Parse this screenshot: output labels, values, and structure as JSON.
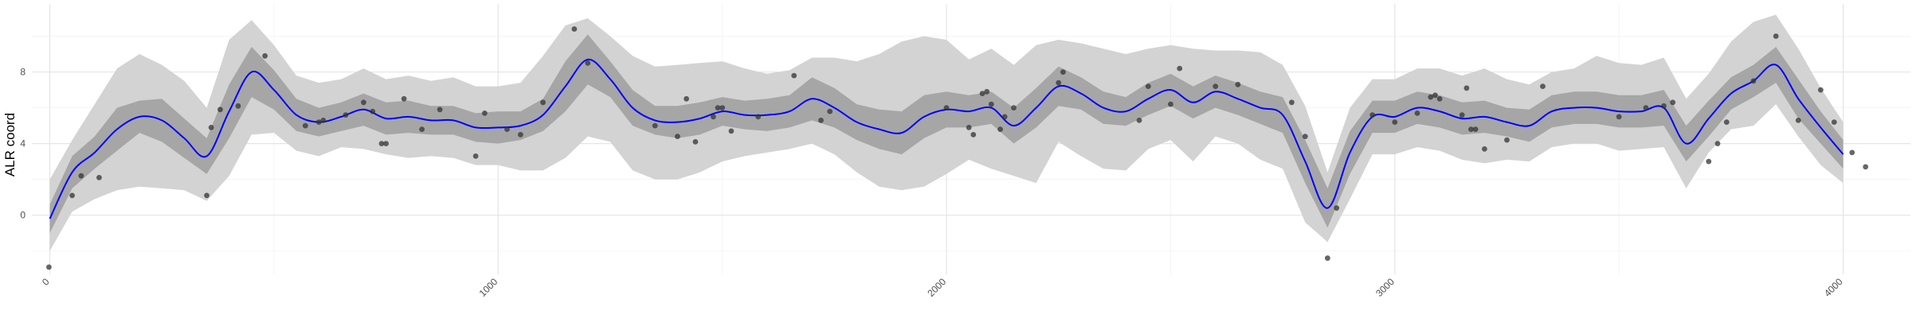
{
  "chart_data": {
    "type": "line",
    "title": "",
    "xlabel": "",
    "ylabel": "ALR coord",
    "xlim": [
      -40,
      4150
    ],
    "ylim": [
      -3.3,
      11.8
    ],
    "x_ticks": [
      0,
      1000,
      2000,
      3000,
      4000
    ],
    "x_tick_labels": [
      "0",
      "1000",
      "2000",
      "3000",
      "4000"
    ],
    "y_ticks": [
      0,
      4,
      8
    ],
    "y_tick_labels": [
      "0",
      "4",
      "8"
    ],
    "grid": true,
    "legend": "none",
    "colors": {
      "line": "#0000ff",
      "inner_band": "#a6a6a6",
      "outer_band": "#d3d3d3",
      "points": "#333333",
      "grid_major": "#e5e5e5",
      "grid_minor": "#f2f2f2"
    },
    "series": [
      {
        "kind": "fit",
        "x": [
          0,
          50,
          100,
          150,
          200,
          250,
          300,
          350,
          400,
          450,
          500,
          550,
          600,
          650,
          700,
          750,
          800,
          850,
          900,
          950,
          1000,
          1050,
          1100,
          1150,
          1200,
          1250,
          1300,
          1350,
          1400,
          1450,
          1500,
          1550,
          1600,
          1650,
          1700,
          1750,
          1800,
          1850,
          1900,
          1950,
          2000,
          2050,
          2100,
          2150,
          2200,
          2250,
          2300,
          2350,
          2400,
          2450,
          2500,
          2550,
          2600,
          2650,
          2700,
          2750,
          2800,
          2850,
          2900,
          2950,
          3000,
          3050,
          3100,
          3150,
          3200,
          3250,
          3300,
          3350,
          3400,
          3450,
          3500,
          3550,
          3600,
          3650,
          3700,
          3750,
          3800,
          3850,
          3900,
          3950,
          4000
        ],
        "y": [
          -0.2,
          2.4,
          3.5,
          4.8,
          5.5,
          5.3,
          4.3,
          3.3,
          5.8,
          8.0,
          7.0,
          5.6,
          5.2,
          5.5,
          5.9,
          5.4,
          5.5,
          5.3,
          5.3,
          4.9,
          4.9,
          5.0,
          5.6,
          7.2,
          8.7,
          7.6,
          6.0,
          5.3,
          5.2,
          5.4,
          5.8,
          5.6,
          5.6,
          5.8,
          6.5,
          6.0,
          5.2,
          4.8,
          4.6,
          5.5,
          5.9,
          5.8,
          6.0,
          5.0,
          6.0,
          7.2,
          6.8,
          6.0,
          5.8,
          6.5,
          7.0,
          6.3,
          6.9,
          6.5,
          6.0,
          5.6,
          3.0,
          0.4,
          3.5,
          5.5,
          5.5,
          6.0,
          5.8,
          5.4,
          5.5,
          5.2,
          5.0,
          5.8,
          6.0,
          6.0,
          5.8,
          5.8,
          6.0,
          4.0,
          5.4,
          6.8,
          7.5,
          8.4,
          6.5,
          4.9,
          3.4
        ],
        "inner_lower": [
          -1.0,
          1.5,
          2.6,
          3.6,
          4.6,
          4.1,
          3.2,
          2.3,
          4.3,
          6.6,
          5.9,
          4.7,
          4.4,
          4.7,
          5.0,
          4.5,
          4.6,
          4.5,
          4.5,
          4.1,
          4.0,
          4.2,
          4.7,
          5.8,
          7.3,
          6.6,
          5.0,
          4.5,
          4.3,
          4.5,
          5.0,
          4.8,
          4.7,
          4.9,
          5.3,
          4.9,
          4.2,
          3.7,
          3.4,
          4.3,
          4.9,
          4.9,
          5.1,
          4.0,
          4.9,
          6.1,
          5.9,
          5.1,
          5.0,
          5.6,
          6.1,
          5.4,
          6.0,
          5.6,
          5.1,
          4.6,
          1.8,
          -0.7,
          2.3,
          4.6,
          4.6,
          5.1,
          4.9,
          4.5,
          4.6,
          4.4,
          4.1,
          4.9,
          5.1,
          5.1,
          4.9,
          4.9,
          5.0,
          3.0,
          4.4,
          5.9,
          6.6,
          7.4,
          5.4,
          4.0,
          2.6
        ],
        "inner_upper": [
          0.6,
          3.3,
          4.4,
          6.0,
          6.4,
          6.5,
          5.4,
          4.3,
          7.3,
          9.4,
          8.1,
          6.5,
          6.0,
          6.3,
          6.8,
          6.3,
          6.4,
          6.1,
          6.1,
          5.7,
          5.8,
          5.8,
          6.5,
          8.6,
          10.1,
          8.6,
          7.0,
          6.1,
          6.1,
          6.3,
          6.6,
          6.4,
          6.5,
          6.7,
          7.7,
          7.1,
          6.2,
          5.9,
          5.8,
          6.7,
          6.9,
          6.7,
          6.9,
          6.0,
          7.1,
          8.3,
          7.7,
          6.9,
          6.6,
          7.4,
          7.9,
          7.2,
          7.8,
          7.4,
          6.9,
          6.6,
          4.2,
          1.5,
          4.7,
          6.4,
          6.4,
          6.9,
          6.7,
          6.3,
          6.4,
          6.0,
          5.9,
          6.7,
          6.9,
          6.9,
          6.7,
          6.7,
          7.0,
          5.0,
          6.4,
          7.7,
          8.4,
          9.4,
          7.6,
          5.8,
          4.2
        ],
        "outer_lower": [
          -2.0,
          0.2,
          0.9,
          1.4,
          1.6,
          1.5,
          1.4,
          0.8,
          2.2,
          4.5,
          4.6,
          3.6,
          3.3,
          3.8,
          3.7,
          3.4,
          3.2,
          3.3,
          3.2,
          2.8,
          2.8,
          2.5,
          2.5,
          3.2,
          4.4,
          4.1,
          2.5,
          2.0,
          2.0,
          2.4,
          3.0,
          3.3,
          3.5,
          3.7,
          4.0,
          3.4,
          2.4,
          1.6,
          1.4,
          1.6,
          2.3,
          3.1,
          2.6,
          2.2,
          1.8,
          4.1,
          3.3,
          2.6,
          2.5,
          3.7,
          4.2,
          3.0,
          4.4,
          4.0,
          3.1,
          2.6,
          -0.4,
          -1.5,
          0.9,
          3.4,
          3.4,
          3.8,
          3.6,
          3.1,
          2.9,
          3.1,
          3.0,
          3.8,
          4.0,
          4.0,
          3.6,
          3.7,
          3.8,
          1.5,
          3.5,
          4.8,
          5.0,
          6.2,
          4.4,
          2.8,
          1.8
        ],
        "outer_upper": [
          2.0,
          4.2,
          6.2,
          8.2,
          9.0,
          8.4,
          7.5,
          6.0,
          9.8,
          10.9,
          9.5,
          7.8,
          7.4,
          7.6,
          8.2,
          7.6,
          7.8,
          7.5,
          7.7,
          7.2,
          7.2,
          7.4,
          8.9,
          10.6,
          11.0,
          10.0,
          8.9,
          8.3,
          8.4,
          8.5,
          8.6,
          8.2,
          7.9,
          8.1,
          8.8,
          8.8,
          8.6,
          9.0,
          9.7,
          10.0,
          9.8,
          8.7,
          9.3,
          8.4,
          9.5,
          9.8,
          9.6,
          9.3,
          9.0,
          9.3,
          9.5,
          9.3,
          9.2,
          9.2,
          9.1,
          8.4,
          6.1,
          2.4,
          6.0,
          7.6,
          7.6,
          8.2,
          8.2,
          7.8,
          8.2,
          7.6,
          7.3,
          8.0,
          8.2,
          8.9,
          8.5,
          8.4,
          8.8,
          6.5,
          7.9,
          9.7,
          10.8,
          11.2,
          9.3,
          7.1,
          5.2
        ]
      },
      {
        "kind": "points",
        "x": [
          -2,
          50,
          70,
          110,
          350,
          360,
          380,
          420,
          480,
          570,
          600,
          610,
          660,
          700,
          720,
          740,
          750,
          790,
          830,
          870,
          950,
          970,
          1020,
          1050,
          1100,
          1170,
          1200,
          1350,
          1400,
          1420,
          1440,
          1480,
          1490,
          1500,
          1520,
          1580,
          1660,
          1720,
          1740,
          2000,
          2050,
          2060,
          2080,
          2090,
          2100,
          2120,
          2130,
          2150,
          2250,
          2260,
          2430,
          2450,
          2500,
          2520,
          2600,
          2650,
          2770,
          2800,
          2850,
          2870,
          2950,
          3000,
          3050,
          3080,
          3090,
          3100,
          3150,
          3160,
          3170,
          3180,
          3200,
          3250,
          3330,
          3500,
          3560,
          3600,
          3620,
          3700,
          3720,
          3740,
          3800,
          3850,
          3900,
          3950,
          3980,
          4020,
          4050
        ],
        "y": [
          -2.9,
          1.1,
          2.2,
          2.1,
          1.1,
          4.9,
          5.9,
          6.1,
          8.9,
          5.0,
          5.2,
          5.3,
          5.6,
          6.3,
          5.8,
          4.0,
          4.0,
          6.5,
          4.8,
          5.9,
          3.3,
          5.7,
          4.8,
          4.5,
          6.3,
          10.4,
          8.5,
          5.0,
          4.4,
          6.5,
          4.1,
          5.5,
          6.0,
          6.0,
          4.7,
          5.5,
          7.8,
          5.3,
          5.8,
          6.0,
          4.9,
          4.5,
          6.8,
          6.9,
          6.2,
          4.8,
          5.5,
          6.0,
          7.4,
          8.0,
          5.3,
          7.2,
          6.2,
          8.2,
          7.2,
          7.3,
          6.3,
          4.4,
          -2.4,
          0.4,
          5.6,
          5.2,
          5.7,
          6.6,
          6.7,
          6.5,
          5.6,
          7.1,
          4.8,
          4.8,
          3.7,
          4.2,
          7.2,
          5.5,
          6.0,
          6.1,
          6.3,
          3.0,
          4.0,
          5.2,
          7.5,
          10.0,
          5.3,
          7.0,
          5.2,
          3.5,
          2.7
        ]
      }
    ]
  }
}
